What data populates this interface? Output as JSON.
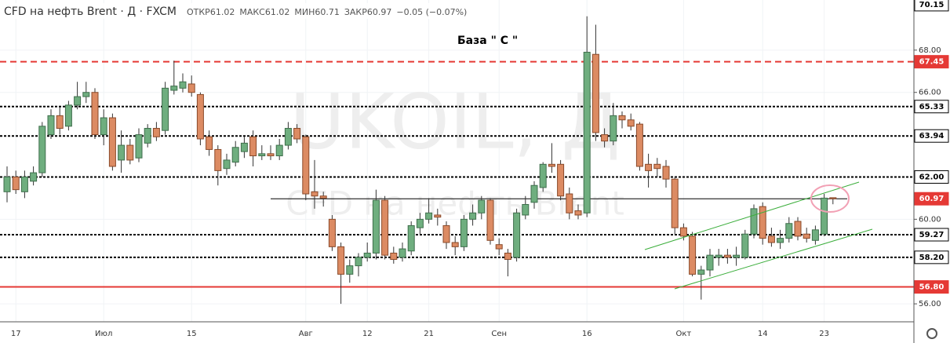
{
  "chart_data": {
    "type": "candlestick",
    "title": "CFD на нефть Brent · Д · FXCM",
    "ohlc_info": [
      {
        "label": "ОТКР",
        "value": 61.02
      },
      {
        "label": "МАКС",
        "value": 61.02
      },
      {
        "label": "МИН",
        "value": 60.71
      },
      {
        "label": "ЗАКР",
        "value": 60.97
      }
    ],
    "change": "−0.05 (−0.07%)",
    "annotation": "База  \" С \"",
    "watermark": [
      "UKOIL, Д",
      "CFD на нефть Brent"
    ],
    "categories": [
      null,
      "17",
      null,
      null,
      null,
      null,
      null,
      null,
      null,
      null,
      null,
      "Июл",
      null,
      null,
      null,
      null,
      null,
      null,
      null,
      null,
      null,
      "15",
      null,
      null,
      null,
      null,
      null,
      null,
      null,
      null,
      null,
      null,
      null,
      null,
      "Авг",
      null,
      null,
      null,
      null,
      null,
      null,
      "12",
      null,
      null,
      null,
      null,
      null,
      null,
      "21",
      null,
      null,
      null,
      null,
      null,
      null,
      null,
      "Сен",
      null,
      null,
      null,
      null,
      null,
      null,
      null,
      null,
      null,
      "16",
      null,
      null,
      null,
      null,
      null,
      null,
      null,
      null,
      null,
      null,
      "Окт",
      null,
      null,
      null,
      null,
      null,
      null,
      null,
      null,
      "14",
      null,
      null,
      null,
      null,
      null,
      null,
      "23",
      null
    ],
    "open": [
      61.3,
      62.0,
      61.3,
      61.8,
      62.2,
      64.0,
      64.9,
      64.4,
      65.4,
      65.8,
      66.0,
      64.0,
      64.8,
      62.8,
      63.5,
      62.9,
      63.6,
      64.3,
      64.2,
      66.1,
      66.2,
      66.4,
      65.9,
      63.9,
      63.3,
      62.4,
      62.7,
      63.2,
      63.9,
      63.0,
      63.1,
      63.0,
      63.5,
      64.3,
      63.9,
      61.3,
      61.1,
      60.0,
      58.7,
      57.4,
      57.8,
      58.2,
      58.4,
      60.9,
      58.4,
      58.2,
      58.5,
      59.6,
      60.0,
      60.2,
      59.7,
      58.9,
      58.7,
      60.0,
      60.3,
      60.9,
      58.8,
      58.4,
      58.2,
      60.2,
      60.8,
      61.5,
      62.6,
      62.6,
      61.2,
      60.4,
      60.3,
      67.8,
      64.0,
      63.7,
      64.9,
      64.7,
      64.5,
      62.6,
      62.6,
      62.5,
      61.9,
      59.6,
      59.2,
      57.4,
      57.6,
      58.2,
      58.3,
      58.2,
      58.2,
      59.3,
      60.6,
      59.2,
      58.9,
      59.1,
      59.9,
      59.3,
      59.0,
      59.3,
      61.02
    ],
    "high": [
      62.5,
      62.3,
      62.3,
      62.5,
      64.6,
      65.2,
      65.3,
      65.6,
      66.5,
      66.5,
      66.2,
      65.2,
      65.0,
      64.2,
      63.8,
      64.3,
      64.5,
      64.6,
      66.5,
      67.5,
      66.9,
      66.8,
      66.0,
      64.2,
      63.5,
      63.1,
      63.7,
      63.9,
      64.2,
      63.5,
      63.5,
      63.8,
      64.6,
      64.5,
      64.0,
      62.8,
      61.3,
      60.2,
      58.9,
      58.1,
      58.4,
      58.9,
      61.4,
      61.1,
      58.7,
      58.9,
      59.9,
      60.3,
      61.0,
      60.5,
      59.9,
      59.2,
      60.2,
      60.7,
      61.1,
      61.0,
      59.1,
      58.6,
      60.5,
      61.1,
      61.8,
      62.7,
      63.6,
      62.8,
      61.5,
      60.7,
      69.6,
      69.2,
      64.3,
      65.5,
      65.1,
      65.0,
      64.6,
      63.1,
      62.9,
      62.8,
      62.0,
      59.8,
      59.4,
      57.8,
      58.6,
      58.6,
      58.6,
      58.7,
      59.5,
      60.7,
      60.8,
      59.6,
      59.5,
      60.1,
      60.1,
      59.6,
      59.7,
      61.2,
      61.02
    ],
    "low": [
      60.8,
      61.2,
      61.0,
      61.6,
      62.0,
      63.8,
      64.0,
      64.2,
      65.2,
      65.5,
      63.8,
      63.5,
      62.3,
      62.2,
      62.6,
      62.7,
      63.4,
      63.7,
      64.0,
      65.9,
      66.0,
      65.8,
      63.5,
      63.0,
      61.6,
      62.1,
      62.5,
      62.9,
      62.5,
      62.8,
      62.8,
      62.8,
      63.3,
      63.6,
      60.9,
      60.5,
      60.6,
      58.5,
      56.0,
      57.0,
      57.3,
      58.0,
      58.1,
      58.1,
      57.9,
      58.0,
      58.3,
      59.3,
      59.8,
      59.7,
      58.6,
      58.3,
      58.5,
      59.7,
      60.0,
      58.8,
      58.3,
      57.3,
      58.0,
      60.0,
      60.5,
      61.3,
      62.2,
      60.9,
      60.0,
      60.0,
      60.1,
      63.7,
      63.4,
      63.5,
      64.3,
      64.2,
      62.3,
      61.5,
      62.0,
      61.5,
      59.3,
      59.0,
      57.3,
      56.2,
      57.3,
      57.8,
      57.9,
      57.8,
      58.1,
      59.1,
      58.8,
      58.7,
      58.6,
      58.9,
      59.0,
      58.9,
      58.8,
      59.2,
      60.71
    ],
    "close": [
      62.0,
      61.4,
      62.0,
      62.2,
      64.4,
      64.9,
      64.3,
      65.4,
      65.8,
      66.0,
      64.0,
      64.8,
      62.5,
      63.5,
      62.8,
      64.0,
      64.3,
      63.9,
      66.2,
      66.3,
      66.5,
      66.0,
      63.8,
      63.3,
      62.3,
      62.8,
      63.4,
      63.6,
      63.0,
      63.1,
      63.0,
      63.5,
      64.3,
      63.8,
      61.2,
      61.1,
      61.0,
      58.7,
      57.4,
      57.8,
      58.2,
      58.4,
      60.9,
      58.3,
      58.1,
      58.6,
      59.7,
      60.0,
      60.3,
      60.1,
      58.9,
      58.7,
      60.0,
      60.3,
      60.9,
      59.0,
      58.6,
      58.1,
      60.3,
      60.7,
      61.6,
      62.6,
      62.5,
      61.1,
      60.3,
      60.2,
      67.9,
      64.1,
      63.7,
      64.9,
      64.7,
      64.4,
      62.5,
      62.3,
      62.4,
      61.9,
      59.6,
      59.2,
      57.4,
      57.6,
      58.3,
      58.3,
      58.2,
      58.3,
      59.3,
      60.5,
      59.1,
      58.9,
      59.1,
      59.8,
      59.2,
      59.1,
      59.5,
      61.0,
      60.97
    ],
    "up_color": "#6fae7f",
    "down_color": "#dc8b63",
    "ylim": [
      55.15,
      70.37
    ],
    "yticks": [
      {
        "value": 56,
        "label": "56.00"
      },
      {
        "value": 60,
        "label": "60.00"
      },
      {
        "value": 66,
        "label": "66.00"
      },
      {
        "value": 68,
        "label": "68.00"
      }
    ],
    "grid": true,
    "levels": [
      {
        "value": 70.15,
        "label": "70.15",
        "style": "none",
        "color": "#000000",
        "box": "#ffffff",
        "text_color": "#000000"
      },
      {
        "value": 67.45,
        "label": "67.45",
        "style": "dashed",
        "color": "#e53935",
        "box": "#e53935",
        "text_color": "#ffffff"
      },
      {
        "value": 65.33,
        "label": "65.33",
        "style": "dotted",
        "color": "#000000",
        "box": "#ffffff",
        "text_color": "#000000"
      },
      {
        "value": 63.94,
        "label": "63.94",
        "style": "dotted",
        "color": "#000000",
        "box": "#ffffff",
        "text_color": "#000000"
      },
      {
        "value": 62.0,
        "label": "62.00",
        "style": "dotted",
        "color": "#000000",
        "box": "#ffffff",
        "text_color": "#000000"
      },
      {
        "value": 60.97,
        "label": "60.97",
        "style": "thin",
        "color": "#000000",
        "box": "#e53935",
        "text_color": "#ffffff"
      },
      {
        "value": 59.27,
        "label": "59.27",
        "style": "dotted",
        "color": "#000000",
        "box": "#ffffff",
        "text_color": "#000000"
      },
      {
        "value": 58.2,
        "label": "58.20",
        "style": "dotted",
        "color": "#000000",
        "box": "#ffffff",
        "text_color": "#000000"
      },
      {
        "value": 56.8,
        "label": "56.80",
        "style": "solid",
        "color": "#e53935",
        "box": "#e53935",
        "text_color": "#ffffff"
      }
    ]
  }
}
